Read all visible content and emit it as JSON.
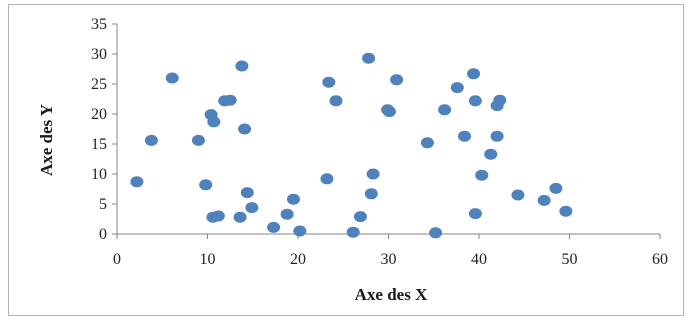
{
  "chart_data": {
    "type": "scatter",
    "title": "",
    "xlabel": "Axe des X",
    "ylabel": "Axe des Y",
    "xlim": [
      0,
      60
    ],
    "ylim": [
      0,
      35
    ],
    "xticks": [
      0,
      10,
      20,
      30,
      40,
      50,
      60
    ],
    "yticks": [
      0,
      5,
      10,
      15,
      20,
      25,
      30,
      35
    ],
    "grid": false,
    "marker_color": "#4f81bd",
    "axis_color": "#868686",
    "series": [
      {
        "points": [
          [
            2.2,
            8.7
          ],
          [
            3.8,
            15.6
          ],
          [
            6.1,
            26.0
          ],
          [
            9.0,
            15.6
          ],
          [
            9.8,
            8.2
          ],
          [
            10.4,
            19.9
          ],
          [
            10.7,
            18.7
          ],
          [
            10.6,
            2.8
          ],
          [
            11.2,
            3.0
          ],
          [
            11.9,
            22.2
          ],
          [
            12.5,
            22.3
          ],
          [
            13.8,
            28.0
          ],
          [
            14.1,
            17.5
          ],
          [
            14.4,
            6.9
          ],
          [
            13.6,
            2.8
          ],
          [
            14.9,
            4.4
          ],
          [
            17.3,
            1.1
          ],
          [
            18.8,
            3.3
          ],
          [
            19.5,
            5.8
          ],
          [
            20.2,
            0.5
          ],
          [
            23.2,
            9.2
          ],
          [
            23.4,
            25.3
          ],
          [
            24.2,
            22.2
          ],
          [
            26.1,
            0.3
          ],
          [
            26.9,
            2.9
          ],
          [
            27.8,
            29.3
          ],
          [
            28.1,
            6.7
          ],
          [
            28.3,
            10.0
          ],
          [
            29.9,
            20.7
          ],
          [
            30.1,
            20.4
          ],
          [
            30.9,
            25.7
          ],
          [
            34.3,
            15.2
          ],
          [
            35.2,
            0.2
          ],
          [
            36.2,
            20.7
          ],
          [
            37.6,
            24.4
          ],
          [
            38.4,
            16.3
          ],
          [
            39.4,
            26.7
          ],
          [
            39.6,
            22.2
          ],
          [
            39.6,
            3.4
          ],
          [
            40.3,
            9.8
          ],
          [
            41.3,
            13.3
          ],
          [
            42.0,
            21.4
          ],
          [
            42.0,
            16.3
          ],
          [
            42.3,
            22.3
          ],
          [
            44.3,
            6.5
          ],
          [
            47.2,
            5.6
          ],
          [
            48.5,
            7.6
          ],
          [
            49.6,
            3.8
          ]
        ]
      }
    ]
  }
}
